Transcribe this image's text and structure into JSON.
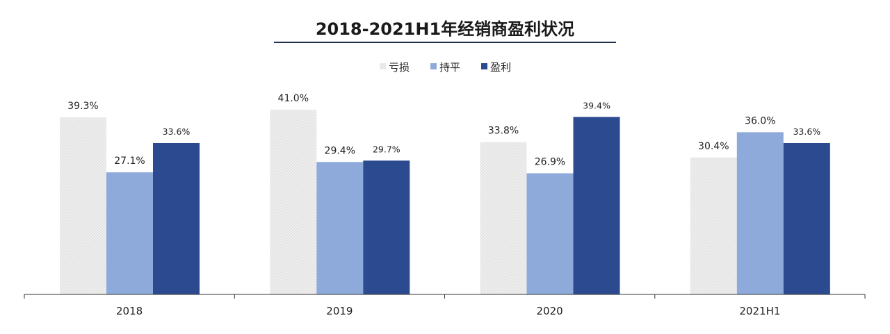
{
  "chart_data": {
    "type": "bar",
    "title": "2018-2021H1年经销商盈利状况",
    "categories": [
      "2018",
      "2019",
      "2020",
      "2021H1"
    ],
    "series": [
      {
        "name": "亏损",
        "color": "#ececec",
        "values": [
          39.3,
          41.0,
          33.8,
          30.4
        ],
        "labels": [
          "39.3%",
          "41.0%",
          "33.8%",
          "30.4%"
        ]
      },
      {
        "name": "持平",
        "color": "#8eaadb",
        "values": [
          27.1,
          29.4,
          26.9,
          36.0
        ],
        "labels": [
          "27.1%",
          "29.4%",
          "26.9%",
          "36.0%"
        ]
      },
      {
        "name": "盈利",
        "color": "#2c4a8f",
        "values": [
          33.6,
          29.7,
          39.4,
          33.6
        ],
        "labels": [
          "33.6%",
          "29.7%",
          "39.4%",
          "33.6%"
        ]
      }
    ],
    "ylim": [
      0,
      41.0
    ],
    "grid": false,
    "legend_position": "top-center",
    "title_underline_color": "#1f2d4d",
    "axis_color": "#333333"
  }
}
